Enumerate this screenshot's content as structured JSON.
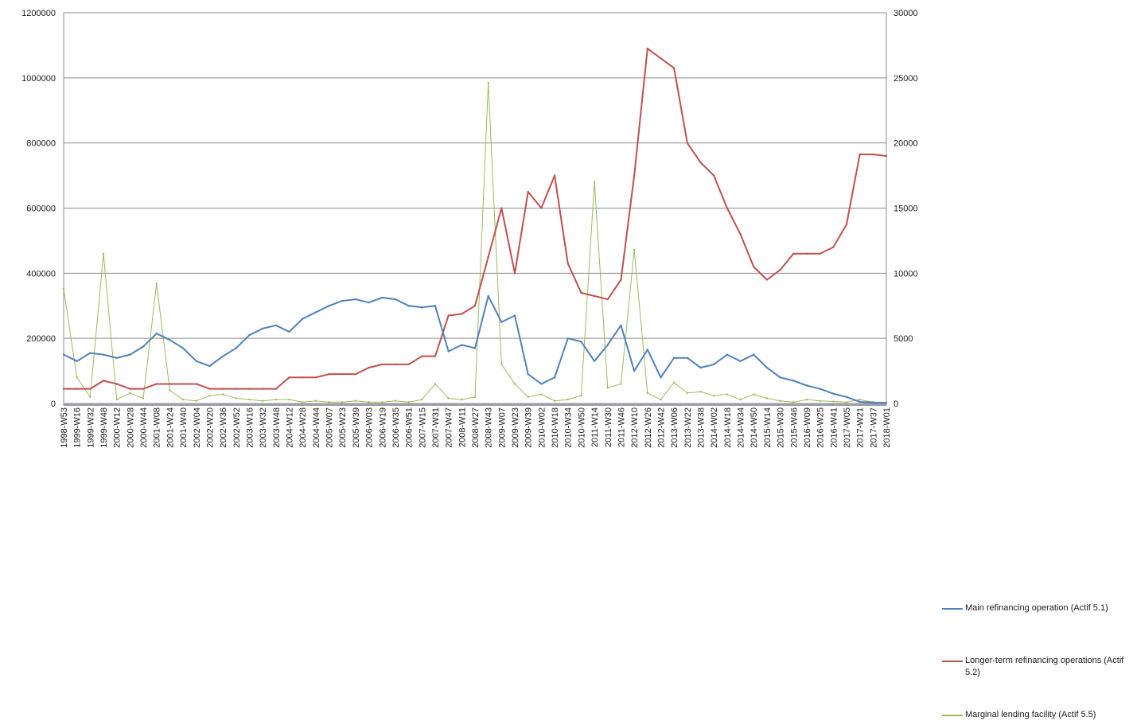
{
  "chart_data": {
    "type": "line",
    "title": "",
    "grid": true,
    "legend_position": "right",
    "y_left": {
      "ticks": [
        "0",
        "200000",
        "400000",
        "600000",
        "800000",
        "1000000",
        "1200000"
      ],
      "range": [
        0,
        1200000
      ]
    },
    "y_right": {
      "ticks": [
        "0",
        "5000",
        "10000",
        "15000",
        "20000",
        "25000",
        "30000"
      ],
      "range": [
        0,
        30000
      ]
    },
    "x_tick_labels": [
      "1998-W53",
      "1999-W16",
      "1999-W32",
      "1999-W48",
      "2000-W12",
      "2000-W28",
      "2000-W44",
      "2001-W08",
      "2001-W24",
      "2001-W40",
      "2002-W04",
      "2002-W20",
      "2002-W36",
      "2002-W52",
      "2003-W16",
      "2003-W32",
      "2003-W48",
      "2004-W12",
      "2004-W28",
      "2004-W44",
      "2005-W07",
      "2005-W23",
      "2005-W39",
      "2006-W03",
      "2006-W19",
      "2006-W35",
      "2006-W51",
      "2007-W15",
      "2007-W31",
      "2007-W47",
      "2008-W11",
      "2008-W27",
      "2008-W43",
      "2009-W07",
      "2009-W23",
      "2009-W39",
      "2010-W02",
      "2010-W18",
      "2010-W34",
      "2010-W50",
      "2011-W14",
      "2011-W30",
      "2011-W46",
      "2012-W10",
      "2012-W26",
      "2012-W42",
      "2013-W06",
      "2013-W22",
      "2013-W38",
      "2014-W02",
      "2014-W18",
      "2014-W34",
      "2014-W50",
      "2015-W14",
      "2015-W30",
      "2015-W46",
      "2016-W09",
      "2016-W25",
      "2016-W41",
      "2017-W05",
      "2017-W21",
      "2017-W37",
      "2018-W01"
    ],
    "series": [
      {
        "name": "Main refinancing operation (Actif 5.1)",
        "axis": "left",
        "color": "#4f81bd",
        "values": [
          150000,
          130000,
          155000,
          150000,
          140000,
          150000,
          175000,
          215000,
          195000,
          170000,
          130000,
          115000,
          145000,
          170000,
          210000,
          230000,
          240000,
          220000,
          260000,
          280000,
          300000,
          315000,
          320000,
          310000,
          325000,
          320000,
          300000,
          295000,
          300000,
          160000,
          180000,
          170000,
          330000,
          250000,
          270000,
          90000,
          60000,
          80000,
          200000,
          190000,
          130000,
          180000,
          240000,
          100000,
          165000,
          80000,
          140000,
          140000,
          110000,
          120000,
          150000,
          130000,
          150000,
          110000,
          80000,
          70000,
          55000,
          45000,
          30000,
          20000,
          5000,
          3000,
          2000
        ]
      },
      {
        "name": "Longer-term refinancing operations (Actif 5.2)",
        "axis": "left",
        "color": "#c0504d",
        "values": [
          45000,
          45000,
          45000,
          70000,
          60000,
          45000,
          45000,
          60000,
          60000,
          60000,
          60000,
          45000,
          45000,
          45000,
          45000,
          45000,
          45000,
          80000,
          80000,
          80000,
          90000,
          90000,
          90000,
          110000,
          120000,
          120000,
          120000,
          145000,
          145000,
          270000,
          275000,
          300000,
          450000,
          600000,
          400000,
          650000,
          600000,
          700000,
          430000,
          340000,
          330000,
          320000,
          380000,
          700000,
          1090000,
          1060000,
          1030000,
          800000,
          740000,
          700000,
          600000,
          520000,
          420000,
          380000,
          410000,
          460000,
          460000,
          460000,
          480000,
          550000,
          765000,
          765000,
          760000
        ]
      },
      {
        "name": "Marginal lending facility (Actif 5.5)",
        "axis": "right",
        "color": "#9bbb59",
        "values": [
          8800,
          2000,
          500,
          11500,
          300,
          800,
          400,
          9200,
          1000,
          300,
          200,
          600,
          700,
          400,
          300,
          200,
          300,
          300,
          100,
          200,
          100,
          100,
          200,
          100,
          100,
          200,
          100,
          300,
          1500,
          400,
          300,
          500,
          24600,
          3000,
          1500,
          500,
          700,
          200,
          300,
          600,
          17000,
          1200,
          1500,
          11800,
          800,
          300,
          1600,
          800,
          900,
          600,
          700,
          300,
          700,
          400,
          200,
          100,
          300,
          200,
          150,
          100,
          300,
          100,
          50
        ]
      }
    ]
  }
}
